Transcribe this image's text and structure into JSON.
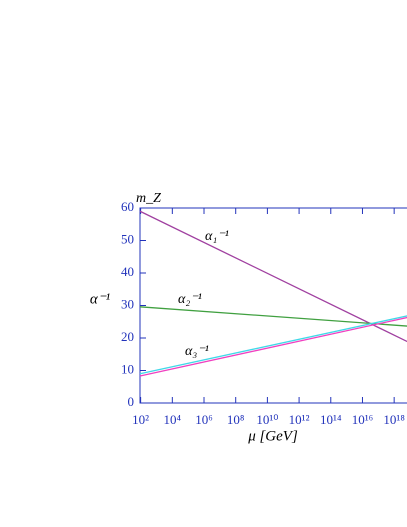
{
  "chart_data": {
    "type": "line",
    "x": [
      91.2,
      1e+19
    ],
    "series": [
      {
        "name": "α₁⁻¹",
        "color": "#a040a0",
        "values": [
          59,
          18.5
        ]
      },
      {
        "name": "α₂⁻¹",
        "color": "#40a040",
        "values": [
          29.6,
          23.6
        ]
      },
      {
        "color": "#40d8e8",
        "values": [
          9,
          27
        ]
      },
      {
        "name": "α₃⁻¹",
        "color": "#f040c0",
        "values": [
          8.3,
          26.5
        ]
      }
    ],
    "xlim": [
      91.2,
      1e+19
    ],
    "ylim": [
      0,
      60
    ],
    "log_x": true,
    "xticks": [
      {
        "value": 100.0,
        "label": "10²"
      },
      {
        "value": 10000.0,
        "label": "10⁴"
      },
      {
        "value": 1000000.0,
        "label": "10⁶"
      },
      {
        "value": 100000000.0,
        "label": "10⁸"
      },
      {
        "value": 10000000000.0,
        "label": "10¹⁰"
      },
      {
        "value": 1000000000000.0,
        "label": "10¹²"
      },
      {
        "value": 100000000000000.0,
        "label": "10¹⁴"
      },
      {
        "value": 1e+16,
        "label": "10¹⁶"
      },
      {
        "value": 1e+18,
        "label": "10¹⁸"
      }
    ],
    "yticks": [
      0,
      10,
      20,
      30,
      40,
      50,
      60
    ],
    "xlabel": "μ  [GeV]",
    "ylabel": "α⁻¹",
    "annotation": "m_Z"
  }
}
